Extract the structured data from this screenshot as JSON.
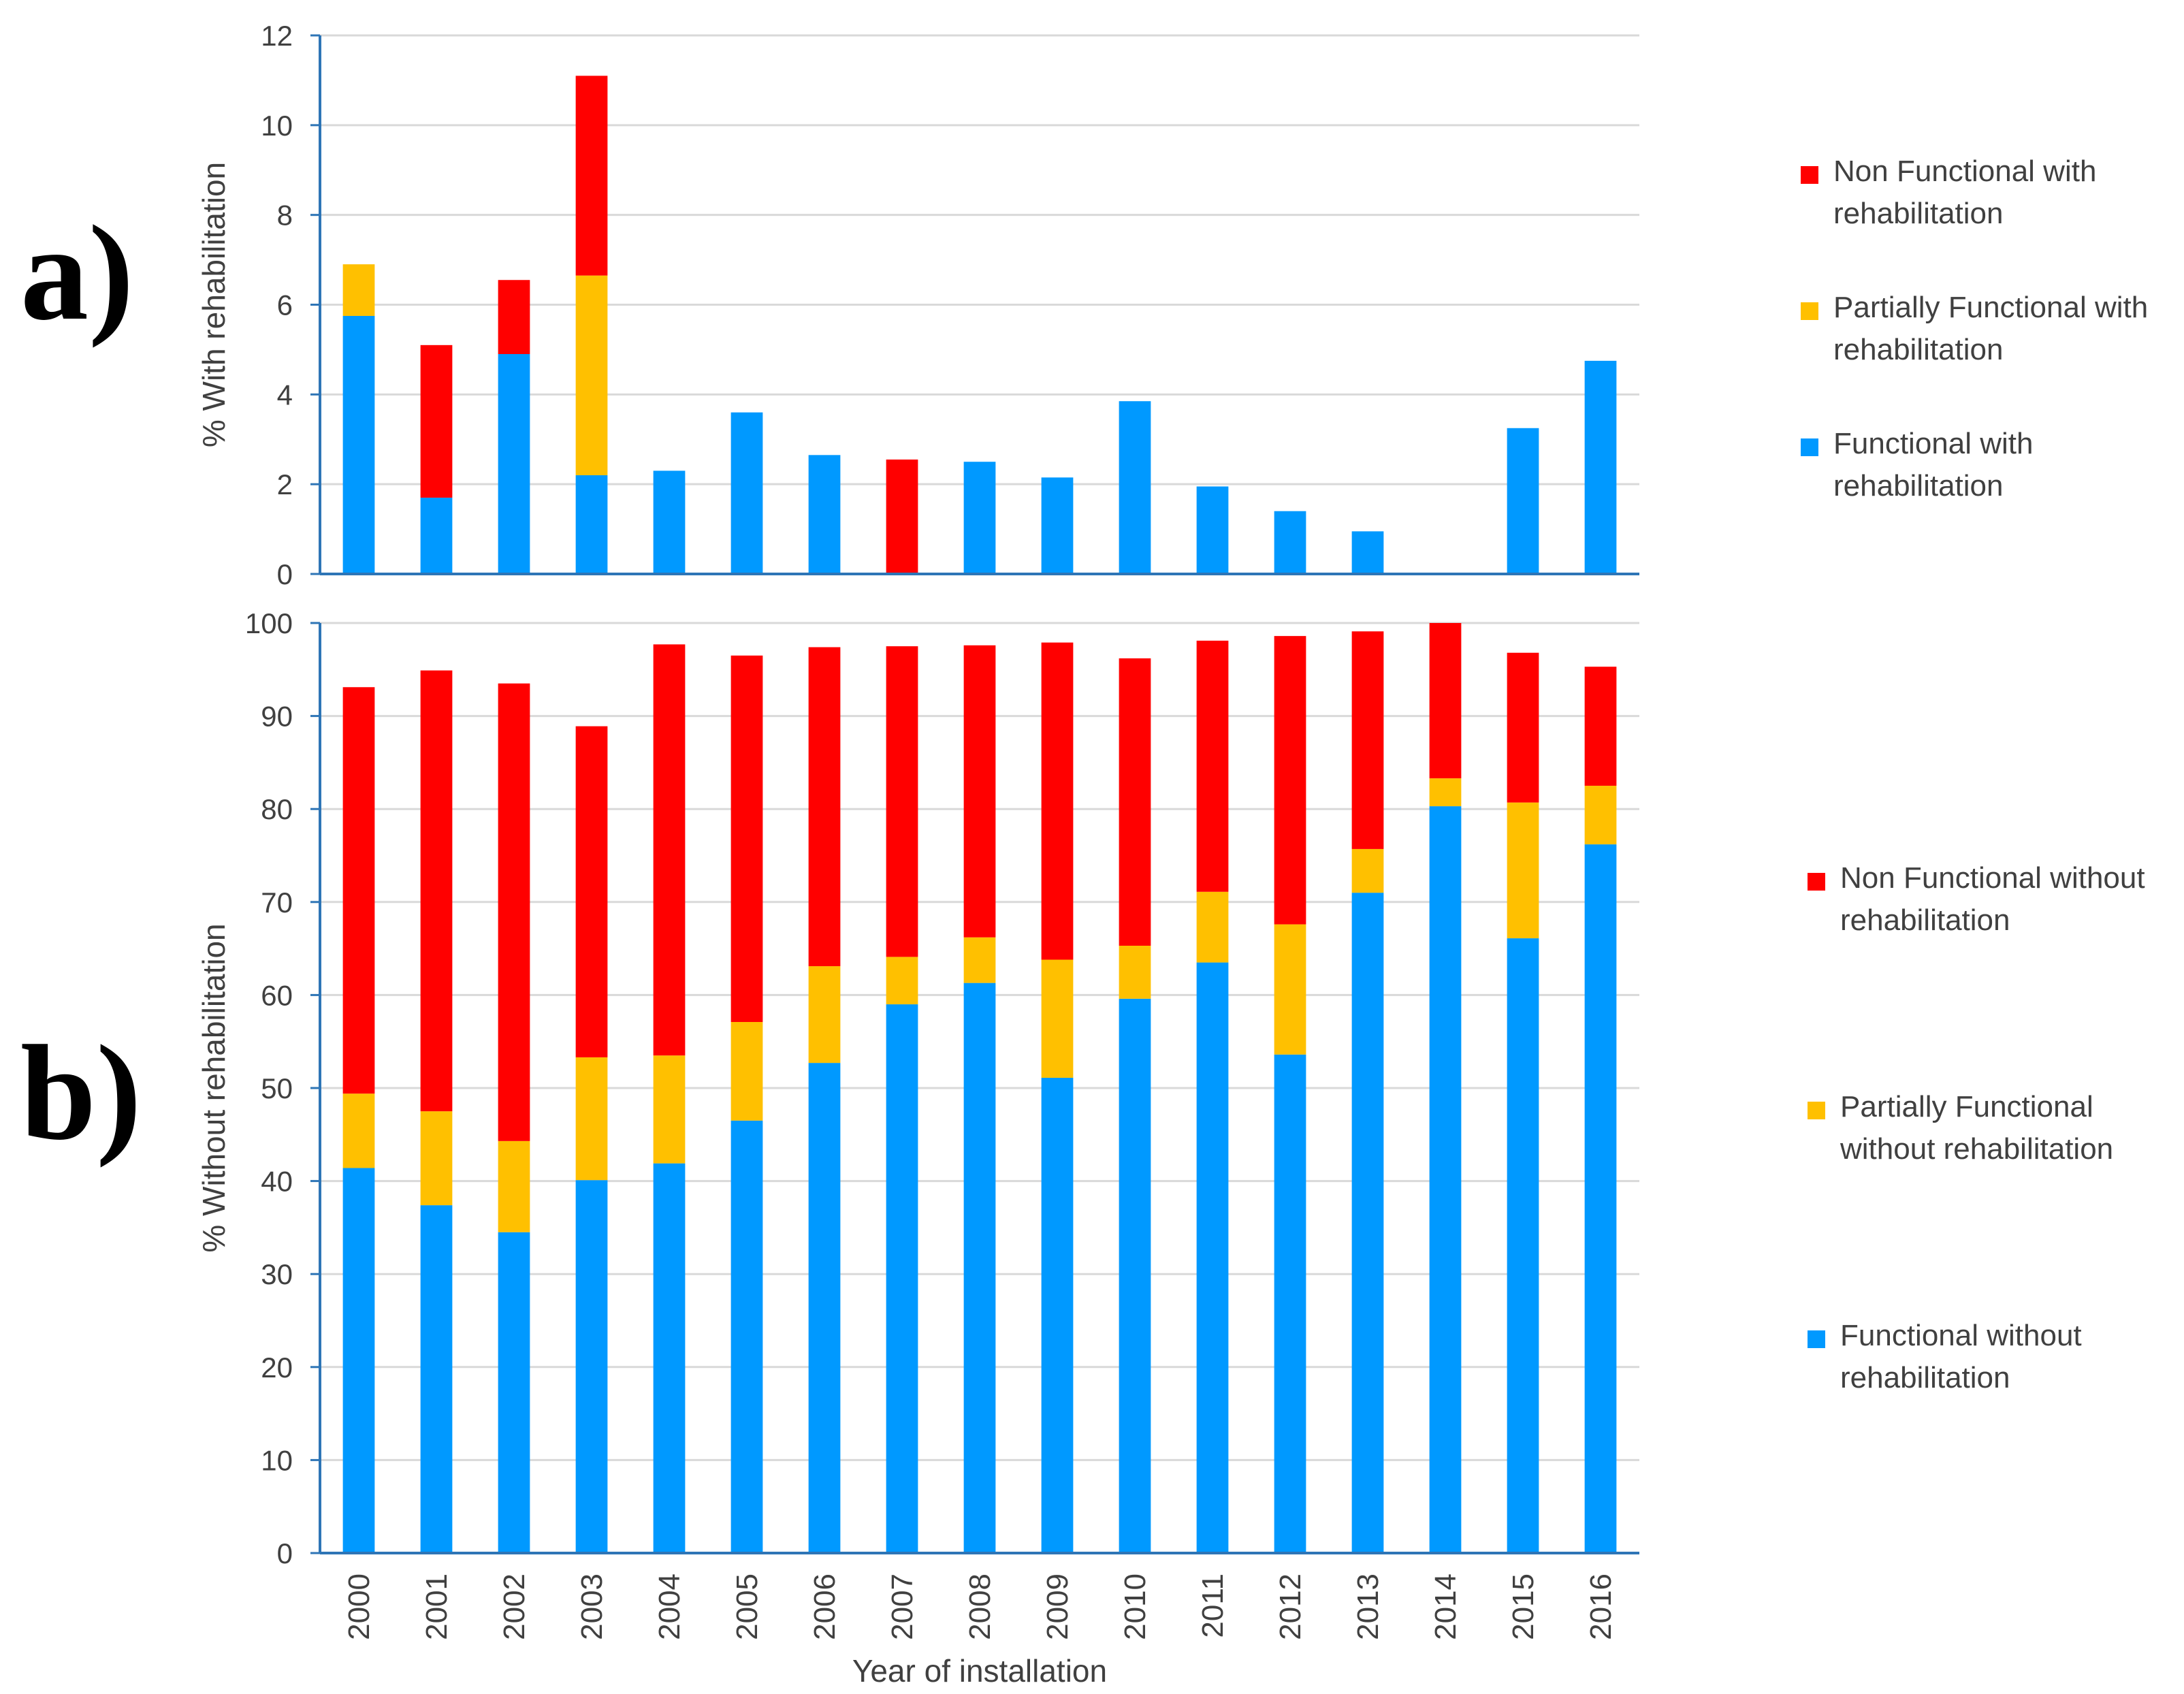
{
  "colors": {
    "functional": "#0099FF",
    "partial": "#FFC000",
    "nonfunctional": "#FF0000",
    "grid": "#D9D9D9",
    "axis": "#2E75B6"
  },
  "panels": {
    "a": {
      "tag": "a)"
    },
    "b": {
      "tag": "b)"
    }
  },
  "chart_data": [
    {
      "id": "a",
      "type": "bar",
      "stacked": true,
      "title": "",
      "xlabel": "",
      "ylabel": "% With rehabilitation",
      "ylim": [
        0,
        12
      ],
      "yticks": [
        0,
        2,
        4,
        6,
        8,
        10,
        12
      ],
      "grid": true,
      "legend_position": "right",
      "categories": [
        "2000",
        "2001",
        "2002",
        "2003",
        "2004",
        "2005",
        "2006",
        "2007",
        "2008",
        "2009",
        "2010",
        "2011",
        "2012",
        "2013",
        "2014",
        "2015",
        "2016"
      ],
      "series": [
        {
          "name": "Functional with rehabilitation",
          "legend_lines": [
            "Functional with",
            "rehabilitation"
          ],
          "color_key": "functional",
          "values": [
            5.75,
            1.7,
            4.9,
            2.2,
            2.3,
            3.6,
            2.65,
            0,
            2.5,
            2.15,
            3.85,
            1.95,
            1.4,
            0.95,
            0,
            3.25,
            4.75
          ]
        },
        {
          "name": "Partially Functional with rehabilitation",
          "legend_lines": [
            "Partially Functional with",
            "rehabilitation"
          ],
          "color_key": "partial",
          "values": [
            1.15,
            0,
            0,
            4.45,
            0,
            0,
            0,
            0,
            0,
            0,
            0,
            0,
            0,
            0,
            0,
            0,
            0
          ]
        },
        {
          "name": "Non Functional with rehabilitation",
          "legend_lines": [
            "Non Functional with",
            "rehabilitation"
          ],
          "color_key": "nonfunctional",
          "values": [
            0,
            3.4,
            1.65,
            4.45,
            0,
            0,
            0,
            2.55,
            0,
            0,
            0,
            0,
            0,
            0,
            0,
            0,
            0
          ]
        }
      ]
    },
    {
      "id": "b",
      "type": "bar",
      "stacked": true,
      "title": "",
      "xlabel": "Year of installation",
      "ylabel": "% Without rehabilitation",
      "ylim": [
        0,
        100
      ],
      "yticks": [
        0,
        10,
        20,
        30,
        40,
        50,
        60,
        70,
        80,
        90,
        100
      ],
      "grid": true,
      "legend_position": "right",
      "categories": [
        "2000",
        "2001",
        "2002",
        "2003",
        "2004",
        "2005",
        "2006",
        "2007",
        "2008",
        "2009",
        "2010",
        "2011",
        "2012",
        "2013",
        "2014",
        "2015",
        "2016"
      ],
      "series": [
        {
          "name": "Functional without rehabilitation",
          "legend_lines": [
            "Functional without",
            "rehabilitation"
          ],
          "color_key": "functional",
          "values": [
            41.4,
            37.4,
            34.5,
            40.1,
            41.9,
            46.5,
            52.7,
            59.0,
            61.3,
            51.1,
            59.6,
            63.5,
            53.6,
            71.0,
            80.3,
            66.1,
            76.2
          ]
        },
        {
          "name": "Partially Functional without rehabilitation",
          "legend_lines": [
            "Partially Functional",
            "without rehabilitation"
          ],
          "color_key": "partial",
          "values": [
            8.0,
            10.1,
            9.8,
            13.2,
            11.6,
            10.6,
            10.4,
            5.1,
            4.9,
            12.7,
            5.7,
            7.6,
            14.0,
            4.7,
            3.0,
            14.6,
            6.3
          ]
        },
        {
          "name": "Non Functional without rehabilitation",
          "legend_lines": [
            "Non Functional without",
            "rehabilitation"
          ],
          "color_key": "nonfunctional",
          "values": [
            43.7,
            47.4,
            49.2,
            35.6,
            44.2,
            39.4,
            34.3,
            33.4,
            31.4,
            34.1,
            30.9,
            27.0,
            31.0,
            23.4,
            16.7,
            16.1,
            12.8
          ]
        }
      ]
    }
  ]
}
